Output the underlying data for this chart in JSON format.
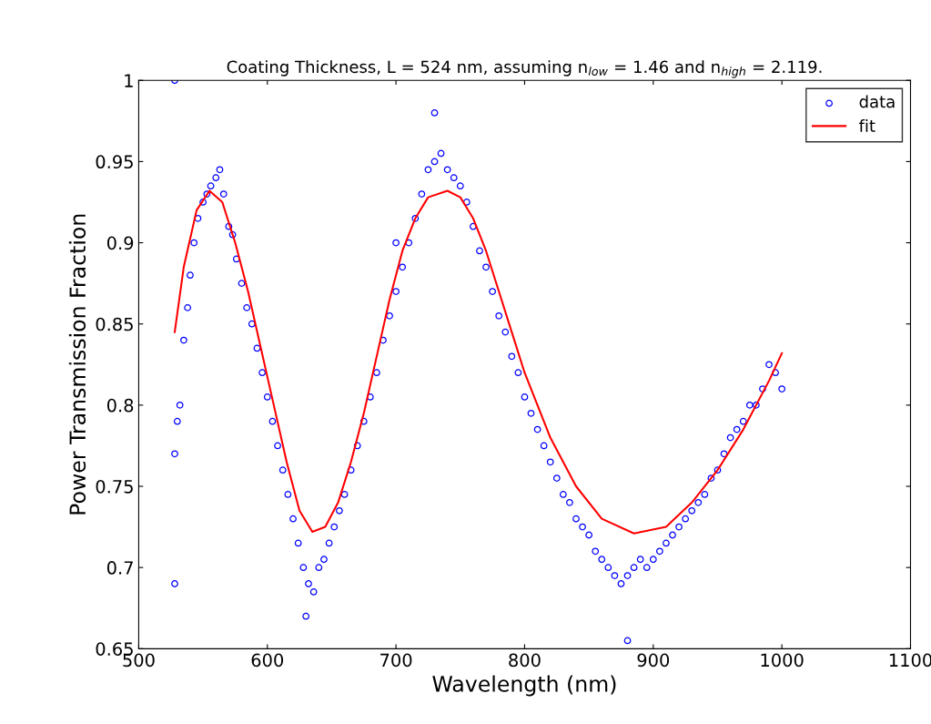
{
  "chart_data": {
    "type": "scatter",
    "title": "Coating Thickness, L = 524 nm, assuming n$_{low}$ = 1.46 and n$_{high}$ = 2.119.",
    "xlabel": "Wavelength (nm)",
    "ylabel": "Power Transmission Fraction",
    "xlim": [
      500,
      1100
    ],
    "xticks": [
      500,
      600,
      700,
      800,
      900,
      1000,
      1100
    ],
    "ylim": [
      0.65,
      1
    ],
    "yticks": [
      0.65,
      0.7,
      0.75,
      0.8,
      0.85,
      0.9,
      0.95,
      1
    ],
    "grid": false,
    "legend": "top right",
    "series": [
      {
        "name": "data",
        "marker": "circle",
        "color": "#0000ff",
        "x": [
          528,
          528,
          528,
          530,
          532,
          535,
          538,
          540,
          543,
          546,
          550,
          553,
          556,
          560,
          563,
          566,
          570,
          573,
          576,
          580,
          584,
          588,
          592,
          596,
          600,
          604,
          608,
          612,
          616,
          620,
          624,
          628,
          630,
          632,
          636,
          640,
          644,
          648,
          652,
          656,
          660,
          665,
          670,
          675,
          680,
          685,
          690,
          695,
          700,
          700,
          705,
          710,
          715,
          720,
          725,
          730,
          730,
          735,
          740,
          745,
          750,
          755,
          760,
          765,
          770,
          775,
          780,
          785,
          790,
          795,
          800,
          805,
          810,
          815,
          820,
          825,
          830,
          835,
          840,
          845,
          850,
          855,
          860,
          865,
          870,
          875,
          880,
          880,
          885,
          890,
          895,
          900,
          905,
          910,
          915,
          920,
          925,
          930,
          935,
          940,
          945,
          950,
          955,
          960,
          965,
          970,
          975,
          980,
          985,
          990,
          995,
          1000
        ],
        "values": [
          1.0,
          0.69,
          0.77,
          0.79,
          0.8,
          0.84,
          0.86,
          0.88,
          0.9,
          0.915,
          0.925,
          0.93,
          0.935,
          0.94,
          0.945,
          0.93,
          0.91,
          0.905,
          0.89,
          0.875,
          0.86,
          0.85,
          0.835,
          0.82,
          0.805,
          0.79,
          0.775,
          0.76,
          0.745,
          0.73,
          0.715,
          0.7,
          0.67,
          0.69,
          0.685,
          0.7,
          0.705,
          0.715,
          0.725,
          0.735,
          0.745,
          0.76,
          0.775,
          0.79,
          0.805,
          0.82,
          0.84,
          0.855,
          0.87,
          0.9,
          0.885,
          0.9,
          0.915,
          0.93,
          0.945,
          0.95,
          0.98,
          0.955,
          0.945,
          0.94,
          0.935,
          0.925,
          0.91,
          0.895,
          0.885,
          0.87,
          0.855,
          0.845,
          0.83,
          0.82,
          0.805,
          0.795,
          0.785,
          0.775,
          0.765,
          0.755,
          0.745,
          0.74,
          0.73,
          0.725,
          0.72,
          0.71,
          0.705,
          0.7,
          0.695,
          0.69,
          0.695,
          0.655,
          0.7,
          0.705,
          0.7,
          0.705,
          0.71,
          0.715,
          0.72,
          0.725,
          0.73,
          0.735,
          0.74,
          0.745,
          0.755,
          0.76,
          0.77,
          0.78,
          0.785,
          0.79,
          0.8,
          0.8,
          0.81,
          0.825,
          0.82,
          0.81
        ]
      },
      {
        "name": "fit",
        "type": "line",
        "marker": "none",
        "color": "#ff0000",
        "x": [
          528,
          535,
          545,
          555,
          565,
          575,
          585,
          595,
          605,
          615,
          625,
          635,
          645,
          655,
          665,
          675,
          685,
          695,
          705,
          715,
          725,
          740,
          750,
          760,
          770,
          780,
          790,
          800,
          810,
          820,
          840,
          860,
          885,
          910,
          930,
          950,
          970,
          990,
          1000
        ],
        "values": [
          0.845,
          0.885,
          0.92,
          0.932,
          0.925,
          0.9,
          0.87,
          0.835,
          0.8,
          0.765,
          0.735,
          0.722,
          0.725,
          0.74,
          0.765,
          0.795,
          0.83,
          0.865,
          0.895,
          0.915,
          0.928,
          0.932,
          0.928,
          0.915,
          0.895,
          0.87,
          0.845,
          0.82,
          0.8,
          0.78,
          0.75,
          0.73,
          0.721,
          0.725,
          0.74,
          0.76,
          0.785,
          0.815,
          0.832
        ]
      }
    ]
  }
}
